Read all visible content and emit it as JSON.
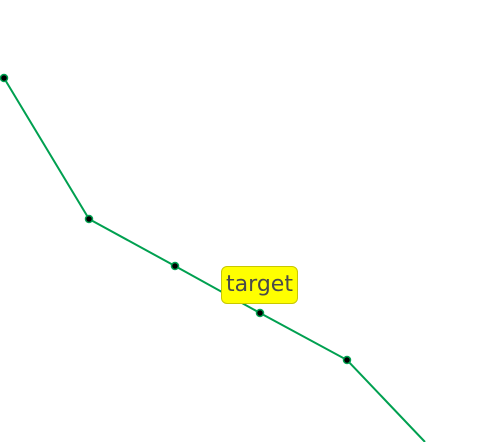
{
  "line": {
    "color": "#00a050",
    "marker_color": "#000000"
  },
  "tooltip": {
    "label": "target",
    "background": "#ffff00"
  }
}
